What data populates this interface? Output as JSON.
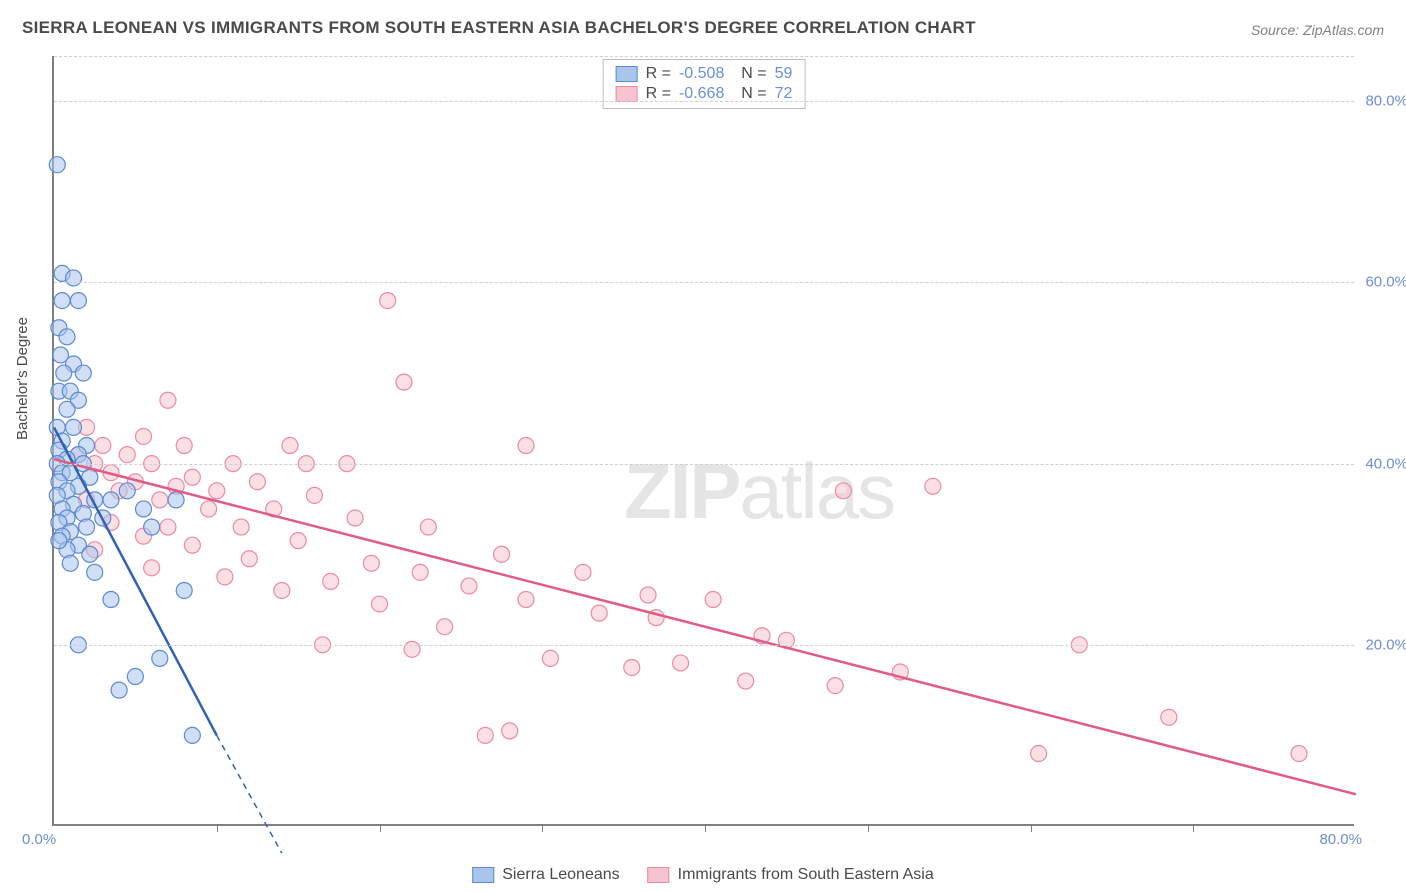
{
  "title": "SIERRA LEONEAN VS IMMIGRANTS FROM SOUTH EASTERN ASIA BACHELOR'S DEGREE CORRELATION CHART",
  "source": "Source: ZipAtlas.com",
  "watermark_zip": "ZIP",
  "watermark_atlas": "atlas",
  "yaxis_title": "Bachelor's Degree",
  "chart": {
    "type": "scatter",
    "xlim": [
      0,
      80
    ],
    "ylim": [
      0,
      85
    ],
    "x_axis_label_min": "0.0%",
    "x_axis_label_max": "80.0%",
    "y_ticks": [
      20,
      40,
      60,
      80
    ],
    "y_tick_labels": [
      "20.0%",
      "40.0%",
      "60.0%",
      "80.0%"
    ],
    "x_minor_ticks": [
      10,
      20,
      30,
      40,
      50,
      60,
      70
    ],
    "grid_color": "#d0d0d0",
    "axis_color": "#808080",
    "tick_label_color": "#6b8fd4",
    "background_color": "#ffffff",
    "marker_radius": 8,
    "marker_stroke_width": 1.2,
    "trend_line_width": 2.5,
    "series": [
      {
        "name": "Sierra Leoneans",
        "fill_color": "#a9c5ec",
        "stroke_color": "#5b8ad0",
        "fill_opacity": 0.55,
        "line_color": "#2f62b5",
        "R": "-0.508",
        "N": "59",
        "trend": {
          "x1": 0,
          "y1": 44,
          "x2": 10,
          "y2": 10,
          "dash_extend_x": 14,
          "dash_extend_y": -3
        },
        "points": [
          [
            0.2,
            73
          ],
          [
            0.5,
            61
          ],
          [
            1.2,
            60.5
          ],
          [
            0.5,
            58
          ],
          [
            1.5,
            58
          ],
          [
            0.3,
            55
          ],
          [
            0.8,
            54
          ],
          [
            0.4,
            52
          ],
          [
            1.2,
            51
          ],
          [
            0.6,
            50
          ],
          [
            1.8,
            50
          ],
          [
            0.3,
            48
          ],
          [
            1.0,
            48
          ],
          [
            1.5,
            47
          ],
          [
            0.8,
            46
          ],
          [
            0.2,
            44
          ],
          [
            1.2,
            44
          ],
          [
            0.5,
            42.5
          ],
          [
            2.0,
            42
          ],
          [
            0.3,
            41.5
          ],
          [
            1.5,
            41
          ],
          [
            0.8,
            40.5
          ],
          [
            0.2,
            40
          ],
          [
            1.8,
            40
          ],
          [
            0.5,
            39
          ],
          [
            1.0,
            39
          ],
          [
            2.2,
            38.5
          ],
          [
            0.3,
            38
          ],
          [
            1.5,
            37.5
          ],
          [
            0.8,
            37
          ],
          [
            0.2,
            36.5
          ],
          [
            2.5,
            36
          ],
          [
            1.2,
            35.5
          ],
          [
            0.5,
            35
          ],
          [
            3.5,
            36
          ],
          [
            1.8,
            34.5
          ],
          [
            0.8,
            34
          ],
          [
            0.3,
            33.5
          ],
          [
            2.0,
            33
          ],
          [
            1.0,
            32.5
          ],
          [
            0.5,
            32
          ],
          [
            4.5,
            37
          ],
          [
            3.0,
            34
          ],
          [
            1.5,
            31
          ],
          [
            0.8,
            30.5
          ],
          [
            7.5,
            36
          ],
          [
            2.2,
            30
          ],
          [
            0.3,
            31.5
          ],
          [
            5.5,
            35
          ],
          [
            1.0,
            29
          ],
          [
            6.0,
            33
          ],
          [
            2.5,
            28
          ],
          [
            8.0,
            26
          ],
          [
            3.5,
            25
          ],
          [
            1.5,
            20
          ],
          [
            6.5,
            18.5
          ],
          [
            4.0,
            15
          ],
          [
            8.5,
            10
          ],
          [
            5.0,
            16.5
          ]
        ]
      },
      {
        "name": "Immigrants from South Eastern Asia",
        "fill_color": "#f5c4d0",
        "stroke_color": "#e98ba5",
        "fill_opacity": 0.55,
        "line_color": "#e05b85",
        "R": "-0.668",
        "N": "72",
        "trend": {
          "x1": 0,
          "y1": 40.5,
          "x2": 80,
          "y2": 3.5
        },
        "points": [
          [
            20.5,
            58
          ],
          [
            7.0,
            47
          ],
          [
            21.5,
            49
          ],
          [
            2.0,
            44
          ],
          [
            5.5,
            43
          ],
          [
            3.0,
            42
          ],
          [
            8.0,
            42
          ],
          [
            14.5,
            42
          ],
          [
            29.0,
            42
          ],
          [
            1.5,
            41
          ],
          [
            4.5,
            41
          ],
          [
            18.0,
            40
          ],
          [
            2.5,
            40
          ],
          [
            6.0,
            40
          ],
          [
            11.0,
            40
          ],
          [
            15.5,
            40
          ],
          [
            3.5,
            39
          ],
          [
            8.5,
            38.5
          ],
          [
            5.0,
            38
          ],
          [
            12.5,
            38
          ],
          [
            7.5,
            37.5
          ],
          [
            10.0,
            37
          ],
          [
            4.0,
            37
          ],
          [
            16.0,
            36.5
          ],
          [
            6.5,
            36
          ],
          [
            2.0,
            36
          ],
          [
            48.5,
            37
          ],
          [
            9.5,
            35
          ],
          [
            13.5,
            35
          ],
          [
            54.0,
            37.5
          ],
          [
            18.5,
            34
          ],
          [
            3.5,
            33.5
          ],
          [
            7.0,
            33
          ],
          [
            11.5,
            33
          ],
          [
            23.0,
            33
          ],
          [
            5.5,
            32
          ],
          [
            15.0,
            31.5
          ],
          [
            8.5,
            31
          ],
          [
            27.5,
            30
          ],
          [
            2.5,
            30.5
          ],
          [
            12.0,
            29.5
          ],
          [
            19.5,
            29
          ],
          [
            6.0,
            28.5
          ],
          [
            22.5,
            28
          ],
          [
            32.5,
            28
          ],
          [
            10.5,
            27.5
          ],
          [
            17.0,
            27
          ],
          [
            25.5,
            26.5
          ],
          [
            14.0,
            26
          ],
          [
            36.5,
            25.5
          ],
          [
            29.0,
            25
          ],
          [
            20.0,
            24.5
          ],
          [
            40.5,
            25
          ],
          [
            33.5,
            23.5
          ],
          [
            37.0,
            23
          ],
          [
            24.0,
            22
          ],
          [
            43.5,
            21
          ],
          [
            63.0,
            20
          ],
          [
            22.0,
            19.5
          ],
          [
            30.5,
            18.5
          ],
          [
            26.5,
            10
          ],
          [
            35.5,
            17.5
          ],
          [
            68.5,
            12
          ],
          [
            60.5,
            8
          ],
          [
            76.5,
            8
          ],
          [
            48.0,
            15.5
          ],
          [
            42.5,
            16
          ],
          [
            38.5,
            18
          ],
          [
            45.0,
            20.5
          ],
          [
            52.0,
            17
          ],
          [
            16.5,
            20
          ],
          [
            28.0,
            10.5
          ]
        ]
      }
    ]
  },
  "legend_bottom": {
    "items": [
      {
        "label": "Sierra Leoneans",
        "fill": "#a9c5ec",
        "stroke": "#5b8ad0"
      },
      {
        "label": "Immigrants from South Eastern Asia",
        "fill": "#f5c4d0",
        "stroke": "#e98ba5"
      }
    ]
  }
}
